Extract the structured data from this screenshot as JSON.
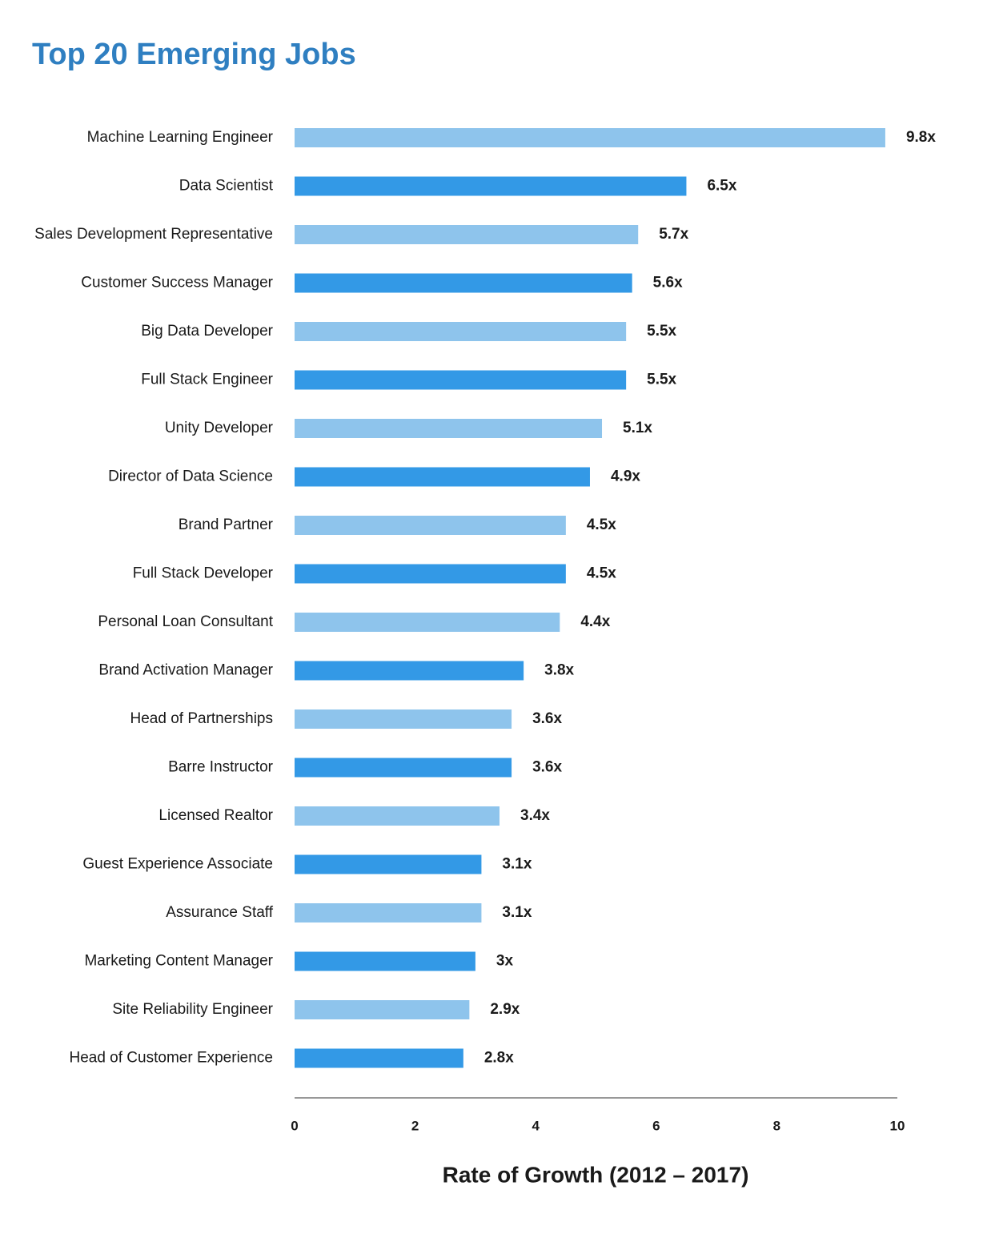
{
  "chart_data": {
    "type": "hbar",
    "title": "Top 20 Emerging Jobs",
    "x_label": "Rate of Growth (2012 – 2017)",
    "categories": [
      "Machine Learning Engineer",
      "Data Scientist",
      "Sales Development Representative",
      "Customer Success Manager",
      "Big Data Developer",
      "Full Stack Engineer",
      "Unity Developer",
      "Director of Data Science",
      "Brand Partner",
      "Full Stack Developer",
      "Personal Loan Consultant",
      "Brand Activation Manager",
      "Head of Partnerships",
      "Barre Instructor",
      "Licensed Realtor",
      "Guest Experience Associate",
      "Assurance Staff",
      "Marketing Content Manager",
      "Site Reliability Engineer",
      "Head of Customer Experience"
    ],
    "values": [
      9.8,
      6.5,
      5.7,
      5.6,
      5.5,
      5.5,
      5.1,
      4.9,
      4.5,
      4.5,
      4.4,
      3.8,
      3.6,
      3.6,
      3.4,
      3.1,
      3.1,
      3,
      2.9,
      2.8
    ],
    "value_labels": [
      "9.8x",
      "6.5x",
      "5.7x",
      "5.6x",
      "5.5x",
      "5.5x",
      "5.1x",
      "4.9x",
      "4.5x",
      "4.5x",
      "4.4x",
      "3.8x",
      "3.6x",
      "3.6x",
      "3.4x",
      "3.1x",
      "3.1x",
      "3x",
      "2.9x",
      "2.8x"
    ],
    "colors": [
      "#8ec4ec",
      "#3399e6",
      "#8ec4ec",
      "#3399e6",
      "#8ec4ec",
      "#3399e6",
      "#8ec4ec",
      "#3399e6",
      "#8ec4ec",
      "#3399e6",
      "#8ec4ec",
      "#3399e6",
      "#8ec4ec",
      "#3399e6",
      "#8ec4ec",
      "#3399e6",
      "#8ec4ec",
      "#3399e6",
      "#8ec4ec",
      "#3399e6"
    ],
    "xlim": [
      0,
      10
    ],
    "xticks": [
      0,
      2,
      4,
      6,
      8,
      10
    ],
    "grid": false
  }
}
